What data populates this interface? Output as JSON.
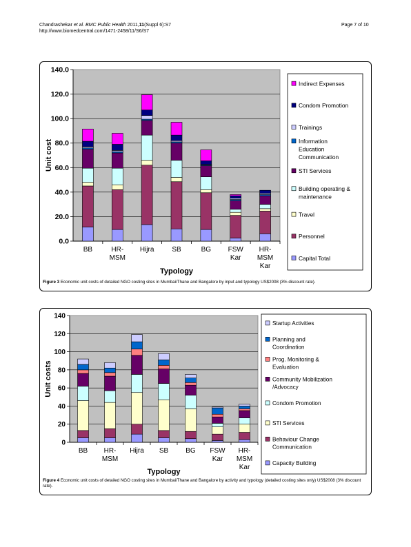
{
  "header": {
    "citation_authors": "Chandrashekar",
    "citation_etal": "et al.",
    "citation_journal": "BMC Public Health",
    "citation_rest_pre": "2011,",
    "citation_volume": "11",
    "citation_rest_post": "(Suppl 6):S7",
    "url": "http://www.biomedcentral.com/1471-2458/11/S6/S7",
    "page": "Page 7 of 10"
  },
  "figures": [
    {
      "caption_label": "Figure 3",
      "caption_text": "Economic unit costs of detailed NGO costing sites in Mumbai/Thane and Bangalore by input and typology US$2008 (3% discount rate)."
    },
    {
      "caption_label": "Figure 4",
      "caption_text": "Economic unit costs of detailed NGO costing sites in Mumbai/Thane and Bangalore by activity and typology (detailed costing sites only) US$2008 (3% discount rate)."
    }
  ],
  "chart_data": [
    {
      "type": "bar",
      "stacked": true,
      "xlabel": "Typology",
      "ylabel": "Unit cost",
      "ylim": [
        0,
        140
      ],
      "yticks": [
        "0.0",
        "20.0",
        "40.0",
        "60.0",
        "80.0",
        "100.0",
        "120.0",
        "140.0"
      ],
      "grid": true,
      "legend_position": "right",
      "categories": [
        [
          "BB"
        ],
        [
          "HR-",
          "MSM"
        ],
        [
          "Hijra"
        ],
        [
          "SB"
        ],
        [
          "BG"
        ],
        [
          "FSW",
          "Kar"
        ],
        [
          "HR-",
          "MSM",
          "Kar"
        ]
      ],
      "series": [
        {
          "name": "Capital Total",
          "color": "#9999ff",
          "values": [
            11.5,
            9.5,
            13.5,
            10,
            9.5,
            2.5,
            6
          ]
        },
        {
          "name": "Personnel",
          "color": "#993366",
          "values": [
            33.5,
            32.5,
            48.5,
            38.5,
            30,
            18.5,
            18.5
          ]
        },
        {
          "name": "Travel",
          "color": "#ffffcc",
          "values": [
            3,
            4,
            4,
            3.5,
            2.5,
            2.5,
            2
          ]
        },
        {
          "name": "Building operating & maintenance",
          "color": "#ccffff",
          "values": [
            11.5,
            13.5,
            20.5,
            14,
            10.5,
            2.5,
            3.5
          ]
        },
        {
          "name": "STI Services",
          "color": "#660066",
          "values": [
            15.5,
            12.5,
            12,
            14,
            9,
            7,
            7
          ]
        },
        {
          "name": "Information Education Communication",
          "color": "#0066cc",
          "values": [
            1,
            1,
            1,
            1,
            0.5,
            1,
            1
          ]
        },
        {
          "name": "Trainings",
          "color": "#ccccff",
          "values": [
            1,
            1,
            3,
            1,
            0.5,
            1,
            1
          ]
        },
        {
          "name": "Condom Promotion",
          "color": "#000080",
          "values": [
            4.5,
            5,
            4.5,
            4.5,
            3,
            2,
            2.5
          ]
        },
        {
          "name": "Indirect Expenses",
          "color": "#ff00ff",
          "values": [
            10,
            9,
            12.5,
            10.5,
            9,
            1,
            0
          ]
        }
      ]
    },
    {
      "type": "bar",
      "stacked": true,
      "xlabel": "Typology",
      "ylabel": "Unit costs",
      "ylim": [
        0,
        140
      ],
      "yticks": [
        "0",
        "20",
        "40",
        "60",
        "80",
        "100",
        "120",
        "140"
      ],
      "grid": true,
      "legend_position": "right",
      "categories": [
        [
          "BB"
        ],
        [
          "HR-",
          "MSM"
        ],
        [
          "Hijra"
        ],
        [
          "SB"
        ],
        [
          "BG"
        ],
        [
          "FSW",
          "Kar"
        ],
        [
          "HR-",
          "MSM",
          "Kar"
        ]
      ],
      "series": [
        {
          "name": "Capacity Building",
          "color": "#9999ff",
          "values": [
            5,
            5,
            9,
            5,
            4,
            2,
            3
          ]
        },
        {
          "name": "Behaviour Change Communication",
          "color": "#993366",
          "values": [
            8,
            10,
            11,
            8,
            8,
            7,
            8
          ]
        },
        {
          "name": "STI Services",
          "color": "#ffffcc",
          "values": [
            33,
            29,
            35,
            34,
            25,
            8,
            9
          ]
        },
        {
          "name": "Condom Promotion",
          "color": "#ccffff",
          "values": [
            16,
            13,
            20,
            18,
            15,
            4,
            7
          ]
        },
        {
          "name": "Community Mobilization /Advocacy",
          "color": "#660066",
          "values": [
            14,
            16,
            21,
            16,
            11,
            7,
            8
          ]
        },
        {
          "name": "Prog. Monitoring & Evaluation",
          "color": "#ff8080",
          "values": [
            4,
            4,
            7,
            4,
            3,
            3,
            2
          ]
        },
        {
          "name": "Planning and Coordination",
          "color": "#0066cc",
          "values": [
            6,
            5,
            8,
            6,
            5,
            7,
            3
          ]
        },
        {
          "name": "Startup Activities",
          "color": "#ccccff",
          "values": [
            6,
            6,
            8,
            7,
            4,
            1,
            2
          ]
        }
      ]
    }
  ]
}
